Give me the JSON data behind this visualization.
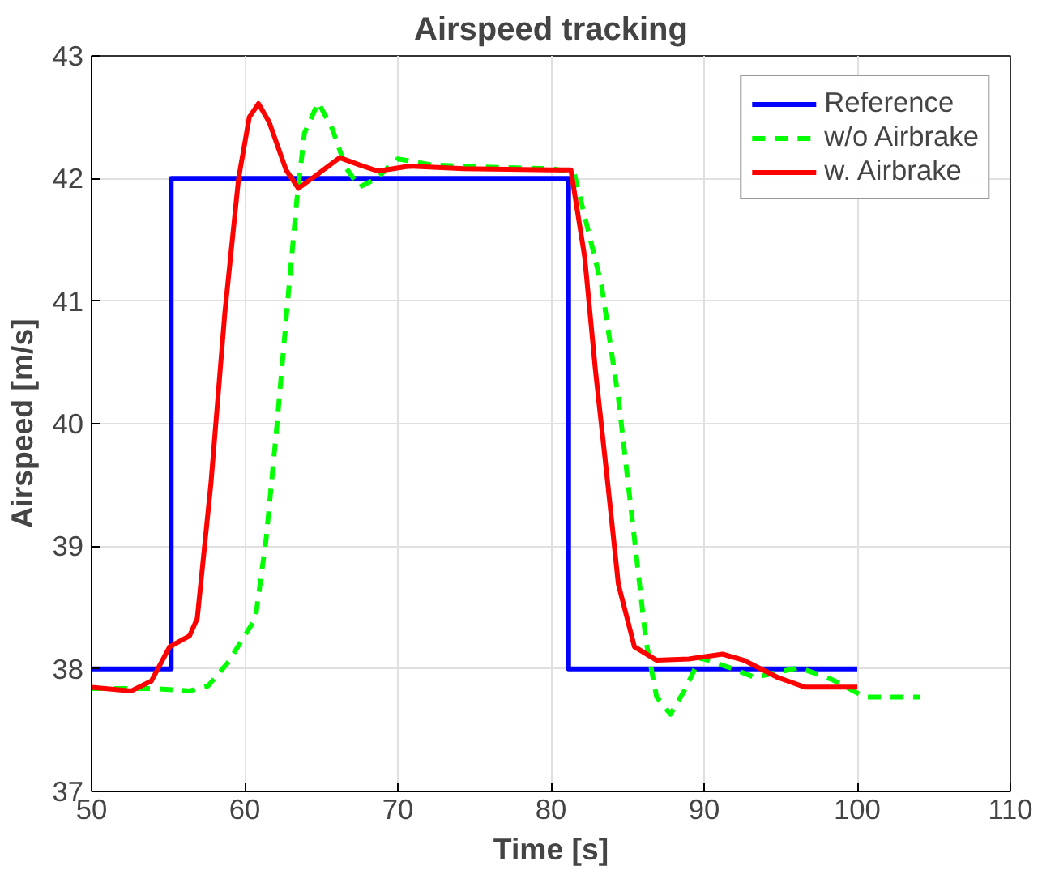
{
  "chart_data": {
    "type": "line",
    "title": "Airspeed tracking",
    "xlabel": "Time [s]",
    "ylabel": "Airspeed [m/s]",
    "xlim": [
      50,
      110
    ],
    "xticks": [
      50,
      60,
      70,
      80,
      90,
      100,
      110
    ],
    "ylim": [
      37,
      43
    ],
    "yticks": [
      37,
      38,
      39,
      40,
      41,
      42,
      43
    ],
    "grid": true,
    "legend": "top right",
    "marker": "none",
    "series": [
      {
        "name": "Reference",
        "color": "#0000ff",
        "line_style": "solid",
        "x": [
          50,
          55.2,
          55.2,
          81.15,
          81.15,
          100
        ],
        "values": [
          38,
          38,
          42,
          42,
          38,
          38
        ]
      },
      {
        "name": "w/o Airbrake",
        "color": "#00ff00",
        "line_style": "dashed",
        "x": [
          50,
          53.9,
          56.4,
          57.6,
          58.9,
          60.7,
          61.4,
          62.1,
          62.8,
          63.4,
          63.9,
          64.8,
          65.7,
          66.6,
          67.5,
          68.6,
          70.0,
          72.2,
          76.5,
          80,
          81.5,
          83.3,
          84.4,
          85.45,
          86.2,
          86.9,
          87.8,
          88.7,
          89.75,
          91.9,
          93.3,
          96.2,
          98.4,
          100.5,
          104.1
        ],
        "values": [
          37.84,
          37.84,
          37.82,
          37.86,
          38.05,
          38.41,
          39.06,
          39.98,
          40.99,
          41.82,
          42.37,
          42.62,
          42.41,
          42.09,
          41.93,
          42.0,
          42.16,
          42.11,
          42.09,
          42.08,
          42.05,
          41.13,
          40.21,
          39.06,
          38.23,
          37.77,
          37.63,
          37.82,
          38.09,
          38.0,
          37.93,
          38.01,
          37.91,
          37.77,
          37.77
        ]
      },
      {
        "name": "w. Airbrake",
        "color": "#ff0000",
        "line_style": "solid",
        "x": [
          50,
          52.6,
          53.9,
          55.1,
          56.4,
          56.9,
          57.8,
          58.7,
          59.6,
          60.3,
          60.9,
          61.6,
          62.7,
          63.5,
          64.6,
          66.2,
          67.5,
          68.7,
          70.7,
          74.3,
          80,
          81.3,
          82.2,
          82.9,
          83.7,
          84.4,
          85.45,
          86.9,
          89.0,
          91.2,
          92.6,
          94.8,
          96.6,
          100
        ],
        "values": [
          37.85,
          37.82,
          37.9,
          38.18,
          38.27,
          38.41,
          39.52,
          40.9,
          42.0,
          42.5,
          42.61,
          42.46,
          42.07,
          41.92,
          42.02,
          42.17,
          42.11,
          42.06,
          42.1,
          42.08,
          42.07,
          42.07,
          41.36,
          40.44,
          39.52,
          38.69,
          38.18,
          38.07,
          38.08,
          38.12,
          38.07,
          37.93,
          37.85,
          37.85
        ]
      }
    ]
  }
}
